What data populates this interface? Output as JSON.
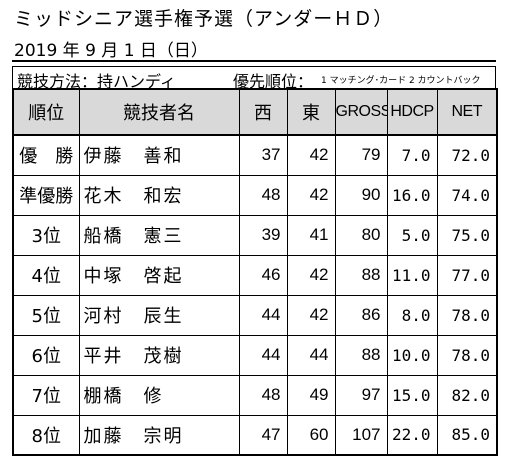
{
  "title": "ミッドシニア選手権予選（アンダーＨＤ）",
  "date": "2019 年 9 月 1 日（日）",
  "method": {
    "label": "競技方法：持ハンディ",
    "order_label": "優先順位：",
    "order_value": "1 マッチング･カード 2 カウントバック"
  },
  "table": {
    "headers": {
      "rank": "順位",
      "name": "競技者名",
      "west": "西",
      "east": "東",
      "gross": "GROSS",
      "hdcp": "HDCP",
      "net": "NET"
    },
    "rows": [
      {
        "rank": "優　勝",
        "name": "伊藤　善和",
        "west": "37",
        "east": "42",
        "gross": "79",
        "hdcp": "7.0",
        "net": "72.0"
      },
      {
        "rank": "準優勝",
        "name": "花木　和宏",
        "west": "48",
        "east": "42",
        "gross": "90",
        "hdcp": "16.0",
        "net": "74.0"
      },
      {
        "rank": "3位",
        "name": "船橋　憲三",
        "west": "39",
        "east": "41",
        "gross": "80",
        "hdcp": "5.0",
        "net": "75.0"
      },
      {
        "rank": "4位",
        "name": "中塚　啓起",
        "west": "46",
        "east": "42",
        "gross": "88",
        "hdcp": "11.0",
        "net": "77.0"
      },
      {
        "rank": "5位",
        "name": "河村　辰生",
        "west": "44",
        "east": "42",
        "gross": "86",
        "hdcp": "8.0",
        "net": "78.0"
      },
      {
        "rank": "6位",
        "name": "平井　茂樹",
        "west": "44",
        "east": "44",
        "gross": "88",
        "hdcp": "10.0",
        "net": "78.0"
      },
      {
        "rank": "7位",
        "name": "棚橋　修",
        "west": "48",
        "east": "49",
        "gross": "97",
        "hdcp": "15.0",
        "net": "82.0"
      },
      {
        "rank": "8位",
        "name": "加藤　宗明",
        "west": "47",
        "east": "60",
        "gross": "107",
        "hdcp": "22.0",
        "net": "85.0"
      }
    ]
  },
  "colors": {
    "header_bg": "#d9d9d9",
    "border": "#000000"
  }
}
